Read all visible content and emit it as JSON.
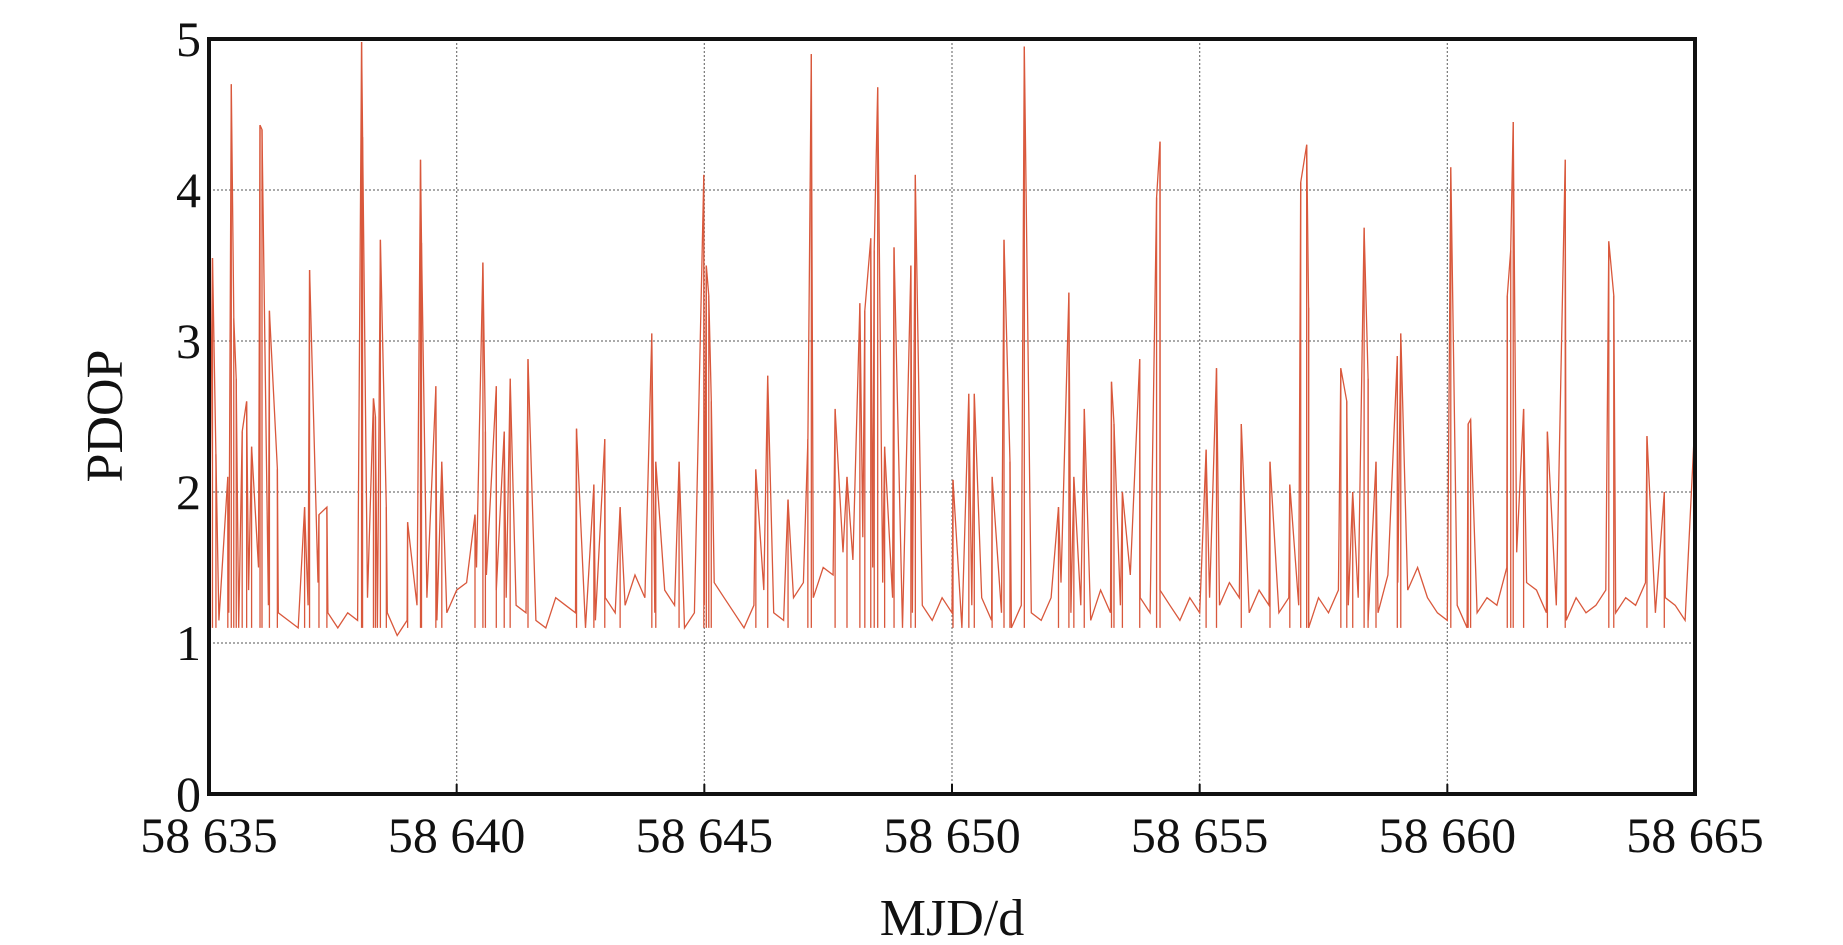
{
  "chart_data": {
    "type": "line",
    "title": "",
    "xlabel": "MJD/d",
    "ylabel": "PDOP",
    "xlim": [
      58635,
      58665
    ],
    "ylim": [
      0,
      5
    ],
    "grid": true,
    "x_ticks": [
      58635,
      58640,
      58645,
      58650,
      58655,
      58660,
      58665
    ],
    "x_tick_labels": [
      "58 635",
      "58 640",
      "58 645",
      "58 650",
      "58 655",
      "58 660",
      "58 665"
    ],
    "y_ticks": [
      0,
      1,
      2,
      3,
      4,
      5
    ],
    "y_tick_labels": [
      "0",
      "1",
      "2",
      "3",
      "4",
      "5"
    ],
    "series_color": "#d9583c",
    "x_origin": 58635,
    "baseline_step_days": 0.2,
    "baseline": [
      1.3,
      1.15,
      1.2,
      1.1,
      1.35,
      1.5,
      1.25,
      1.2,
      1.15,
      1.1,
      1.25,
      1.4,
      1.2,
      1.1,
      1.2,
      1.15,
      1.3,
      1.1,
      1.2,
      1.05,
      1.15,
      1.25,
      1.3,
      1.15,
      1.2,
      1.35,
      1.4,
      1.5,
      1.45,
      1.35,
      1.3,
      1.25,
      1.2,
      1.15,
      1.1,
      1.3,
      1.25,
      1.2,
      1.1,
      1.15,
      1.3,
      1.2,
      1.25,
      1.45,
      1.3,
      1.2,
      1.35,
      1.25,
      1.1,
      1.2,
      1.25,
      1.4,
      1.3,
      1.2,
      1.1,
      1.25,
      1.35,
      1.2,
      1.15,
      1.3,
      1.4,
      1.3,
      1.5,
      1.45,
      1.6,
      1.55,
      1.7,
      1.5,
      1.4,
      1.3,
      1.1,
      1.2,
      1.25,
      1.15,
      1.3,
      1.2,
      1.1,
      1.25,
      1.3,
      1.15,
      1.2,
      1.1,
      1.25,
      1.2,
      1.15,
      1.3,
      1.4,
      1.2,
      1.25,
      1.15,
      1.35,
      1.2,
      1.25,
      1.45,
      1.3,
      1.2,
      1.35,
      1.25,
      1.15,
      1.3,
      1.2,
      1.3,
      1.25,
      1.4,
      1.3,
      1.2,
      1.35,
      1.25,
      1.2,
      1.3,
      1.25,
      1.1,
      1.3,
      1.2,
      1.35,
      1.25,
      1.3,
      1.15,
      1.2,
      1.45,
      1.4,
      1.35,
      1.5,
      1.3,
      1.2,
      1.15,
      1.25,
      1.1,
      1.2,
      1.3,
      1.25,
      1.5,
      1.6,
      1.4,
      1.35,
      1.2,
      1.25,
      1.15,
      1.3,
      1.2,
      1.25,
      1.35,
      1.2,
      1.3,
      1.25,
      1.4,
      1.2,
      1.3,
      1.25,
      1.15,
      1.35
    ],
    "spikes": [
      [
        0.07,
        3.55
      ],
      [
        0.14,
        2.25
      ],
      [
        0.38,
        2.1
      ],
      [
        0.45,
        4.7
      ],
      [
        0.5,
        3.15
      ],
      [
        0.55,
        2.75
      ],
      [
        0.67,
        2.4
      ],
      [
        0.76,
        2.6
      ],
      [
        0.86,
        2.3
      ],
      [
        1.03,
        4.43
      ],
      [
        1.07,
        4.4
      ],
      [
        1.22,
        3.2
      ],
      [
        1.38,
        2.15
      ],
      [
        1.93,
        1.9
      ],
      [
        2.03,
        3.47
      ],
      [
        2.22,
        1.85
      ],
      [
        2.38,
        1.9
      ],
      [
        3.08,
        4.98
      ],
      [
        3.1,
        4.35
      ],
      [
        3.32,
        2.62
      ],
      [
        3.36,
        2.5
      ],
      [
        3.46,
        3.67
      ],
      [
        3.58,
        1.9
      ],
      [
        4.01,
        1.8
      ],
      [
        4.27,
        4.2
      ],
      [
        4.29,
        3.65
      ],
      [
        4.58,
        2.7
      ],
      [
        4.7,
        2.2
      ],
      [
        5.37,
        1.85
      ],
      [
        5.53,
        3.52
      ],
      [
        5.58,
        2.4
      ],
      [
        5.8,
        2.7
      ],
      [
        5.96,
        2.4
      ],
      [
        6.08,
        2.75
      ],
      [
        6.44,
        2.88
      ],
      [
        7.42,
        2.42
      ],
      [
        7.77,
        2.05
      ],
      [
        7.99,
        2.35
      ],
      [
        8.3,
        1.9
      ],
      [
        8.94,
        3.05
      ],
      [
        9.02,
        2.2
      ],
      [
        9.49,
        2.2
      ],
      [
        9.99,
        4.1
      ],
      [
        10.04,
        3.5
      ],
      [
        10.09,
        3.3
      ],
      [
        10.14,
        2.6
      ],
      [
        11.04,
        2.15
      ],
      [
        11.28,
        2.77
      ],
      [
        11.69,
        1.95
      ],
      [
        12.09,
        2.35
      ],
      [
        12.16,
        4.9
      ],
      [
        12.64,
        2.55
      ],
      [
        12.88,
        2.1
      ],
      [
        13.14,
        3.25
      ],
      [
        13.24,
        3.2
      ],
      [
        13.36,
        3.68
      ],
      [
        13.43,
        3.6
      ],
      [
        13.5,
        4.68
      ],
      [
        13.64,
        2.3
      ],
      [
        13.83,
        3.62
      ],
      [
        14.17,
        3.5
      ],
      [
        14.26,
        4.1
      ],
      [
        15.02,
        2.08
      ],
      [
        15.34,
        2.65
      ],
      [
        15.45,
        2.65
      ],
      [
        15.81,
        2.1
      ],
      [
        16.05,
        3.67
      ],
      [
        16.17,
        2.2
      ],
      [
        16.46,
        4.95
      ],
      [
        17.15,
        1.9
      ],
      [
        17.36,
        3.32
      ],
      [
        17.46,
        2.1
      ],
      [
        17.67,
        2.55
      ],
      [
        18.22,
        2.73
      ],
      [
        18.27,
        2.45
      ],
      [
        18.44,
        2.0
      ],
      [
        18.79,
        2.88
      ],
      [
        19.13,
        3.95
      ],
      [
        19.2,
        4.32
      ],
      [
        20.13,
        2.28
      ],
      [
        20.34,
        2.82
      ],
      [
        20.84,
        2.45
      ],
      [
        21.42,
        2.2
      ],
      [
        21.82,
        2.05
      ],
      [
        22.04,
        4.05
      ],
      [
        22.16,
        4.3
      ],
      [
        22.2,
        3.22
      ],
      [
        22.85,
        2.82
      ],
      [
        22.97,
        2.6
      ],
      [
        23.09,
        2.0
      ],
      [
        23.32,
        3.75
      ],
      [
        23.4,
        2.75
      ],
      [
        23.56,
        2.2
      ],
      [
        23.99,
        2.9
      ],
      [
        24.06,
        3.05
      ],
      [
        25.07,
        4.15
      ],
      [
        25.42,
        2.45
      ],
      [
        25.47,
        2.48
      ],
      [
        26.21,
        3.3
      ],
      [
        26.28,
        3.6
      ],
      [
        26.33,
        4.45
      ],
      [
        26.54,
        2.55
      ],
      [
        27.02,
        2.4
      ],
      [
        27.38,
        4.2
      ],
      [
        28.26,
        3.66
      ],
      [
        28.36,
        3.3
      ],
      [
        29.03,
        2.37
      ],
      [
        29.38,
        2.0
      ],
      [
        29.99,
        2.42
      ]
    ]
  }
}
